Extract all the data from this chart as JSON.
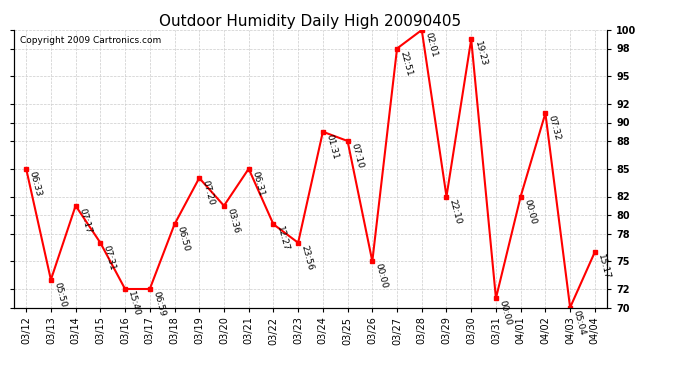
{
  "title": "Outdoor Humidity Daily High 20090405",
  "copyright": "Copyright 2009 Cartronics.com",
  "dates": [
    "03/12",
    "03/13",
    "03/14",
    "03/15",
    "03/16",
    "03/17",
    "03/18",
    "03/19",
    "03/20",
    "03/21",
    "03/22",
    "03/23",
    "03/24",
    "03/25",
    "03/26",
    "03/27",
    "03/28",
    "03/29",
    "03/30",
    "03/31",
    "04/01",
    "04/02",
    "04/03",
    "04/04"
  ],
  "values": [
    85,
    73,
    81,
    77,
    72,
    72,
    79,
    84,
    81,
    85,
    79,
    77,
    89,
    88,
    75,
    98,
    100,
    82,
    99,
    71,
    82,
    91,
    70,
    76
  ],
  "times": [
    "06:33",
    "05:50",
    "07:17",
    "07:31",
    "15:40",
    "06:59",
    "06:50",
    "07:20",
    "03:36",
    "06:31",
    "12:27",
    "23:56",
    "01:31",
    "07:10",
    "00:00",
    "22:51",
    "02:01",
    "22:10",
    "19:23",
    "00:00",
    "00:00",
    "07:32",
    "05:04",
    "15:17"
  ],
  "ylim_min": 70,
  "ylim_max": 100,
  "yticks": [
    70,
    72,
    75,
    78,
    80,
    82,
    85,
    88,
    90,
    92,
    95,
    98,
    100
  ],
  "line_color": "red",
  "marker_color": "red",
  "marker_size": 3,
  "grid_color": "#cccccc",
  "grid_style": "--",
  "bg_color": "white",
  "title_fontsize": 11,
  "label_fontsize": 6.5,
  "tick_fontsize": 7,
  "copyright_fontsize": 6.5
}
